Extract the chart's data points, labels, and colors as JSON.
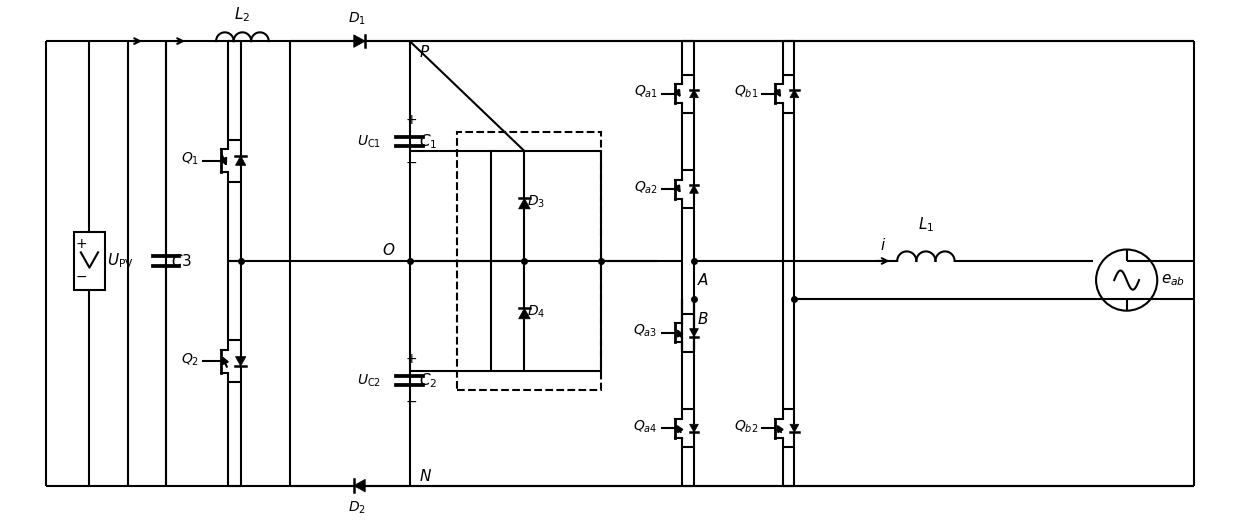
{
  "fig_width": 12.4,
  "fig_height": 5.21,
  "dpi": 100,
  "lw": 1.5,
  "fs": 10
}
